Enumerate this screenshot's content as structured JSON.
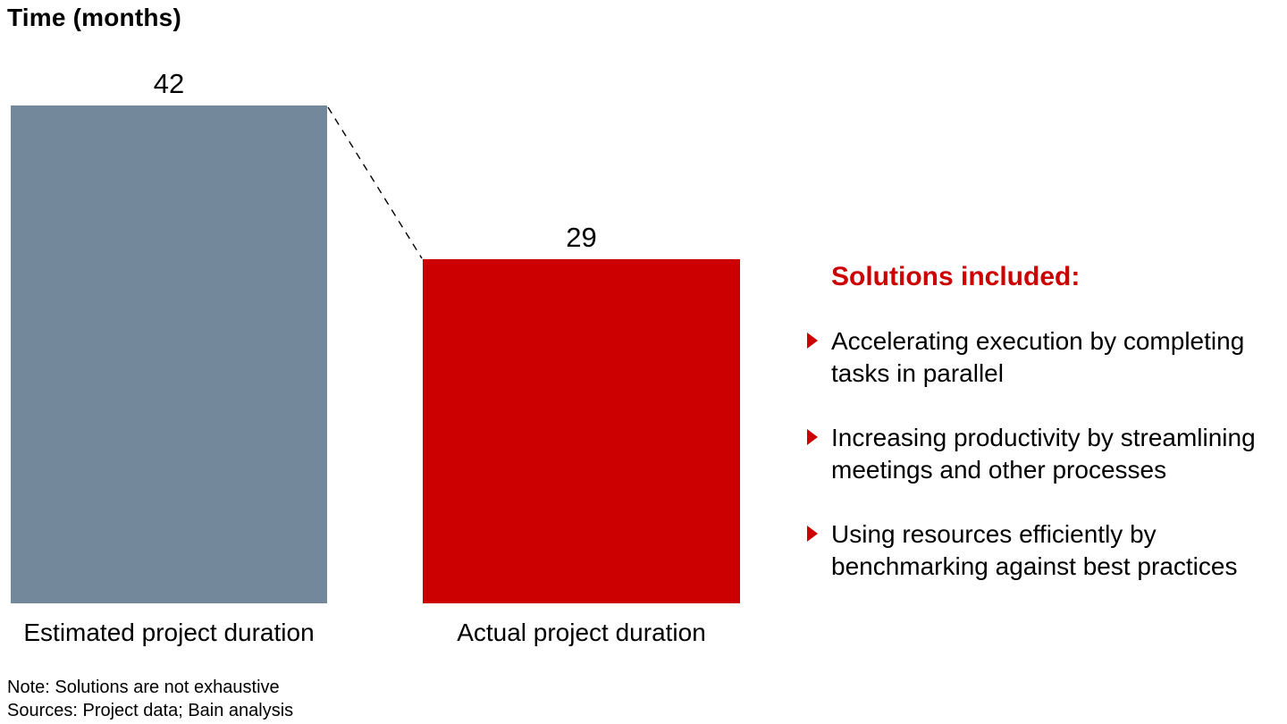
{
  "chart_data": {
    "type": "bar",
    "title": "Time (months)",
    "categories": [
      "Estimated project duration",
      "Actual project duration"
    ],
    "values": [
      42,
      29
    ],
    "bar_colors": [
      "#73889b",
      "#cc0000"
    ],
    "ylim": [
      0,
      42
    ],
    "grid": false,
    "annotations": "dashed connector line from top of first bar down to top of second bar",
    "data_labels": [
      "42",
      "29"
    ]
  },
  "solutions": {
    "heading": "Solutions included:",
    "items": [
      "Accelerating execution by completing tasks in parallel",
      "Increasing productivity by streamlining meetings and other processes",
      "Using resources efficiently by benchmarking against best practices"
    ]
  },
  "footer": {
    "note": "Note: Solutions are not exhaustive",
    "sources": "Sources: Project data; Bain analysis"
  },
  "colors": {
    "accent_red": "#cc0000",
    "slate_gray": "#73889b",
    "connector_black": "#000000"
  }
}
